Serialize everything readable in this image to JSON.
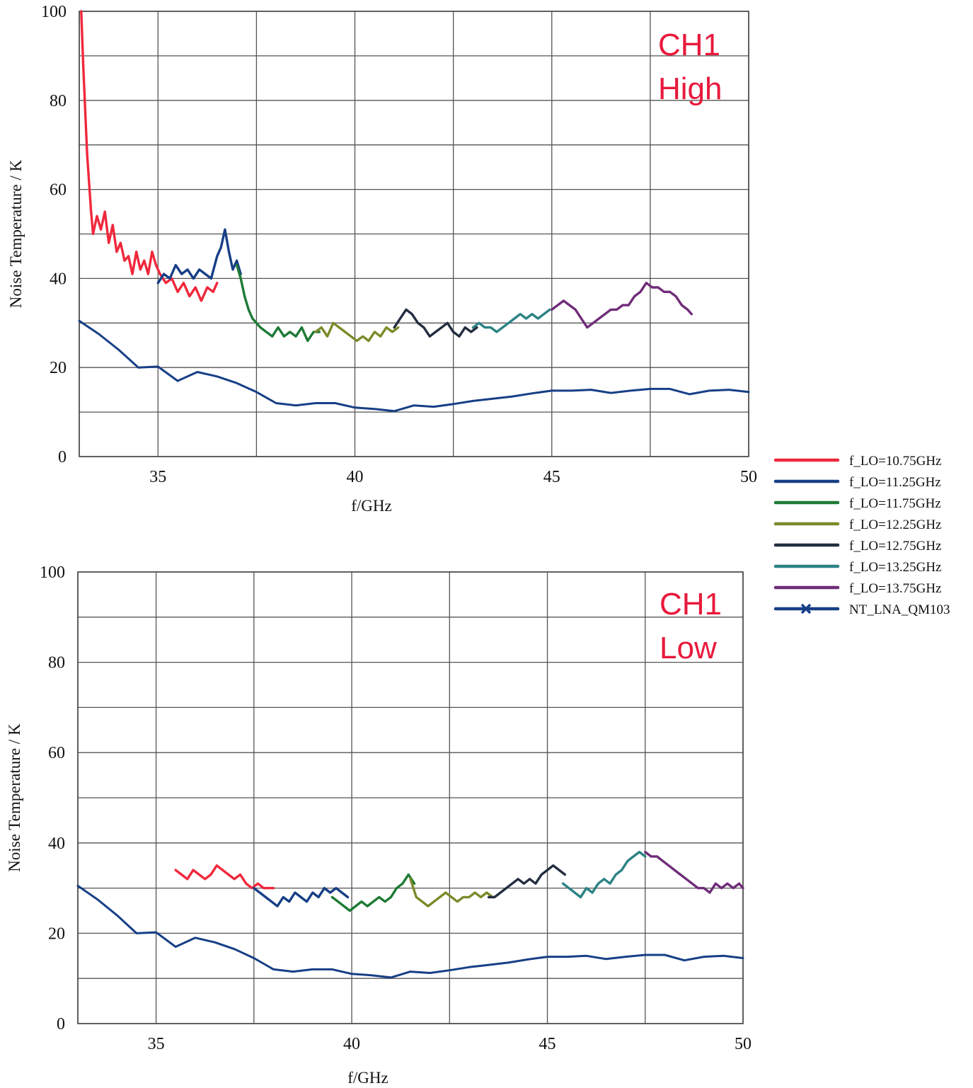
{
  "chart_data": [
    {
      "type": "line",
      "annotation_lines": [
        "CH1",
        "High"
      ],
      "xlabel": "f/GHz",
      "ylabel": "Noise Temperature / K",
      "xlim": [
        33,
        50
      ],
      "ylim": [
        0,
        100
      ],
      "xticks": [
        35,
        40,
        45,
        50
      ],
      "yticks": [
        0,
        20,
        40,
        60,
        80,
        100
      ],
      "grid": true,
      "series": [
        {
          "name": "f_LO=10.75GHz",
          "color": "#f0283c",
          "x": [
            33.05,
            33.1,
            33.2,
            33.3,
            33.35,
            33.45,
            33.55,
            33.65,
            33.75,
            33.85,
            33.95,
            34.05,
            34.15,
            34.25,
            34.35,
            34.45,
            34.55,
            34.65,
            34.75,
            34.85,
            34.95,
            35.05,
            35.2,
            35.35,
            35.5,
            35.65,
            35.8,
            35.95,
            36.1,
            36.25,
            36.4,
            36.5
          ],
          "y": [
            100,
            88,
            68,
            55,
            50,
            54,
            51,
            55,
            48,
            52,
            46,
            48,
            44,
            45,
            41,
            46,
            42,
            44,
            41,
            46,
            43,
            41,
            39,
            40,
            37,
            39,
            36,
            38,
            35,
            38,
            37,
            39
          ]
        },
        {
          "name": "f_LO=11.25GHz",
          "color": "#173f86",
          "x": [
            35.0,
            35.15,
            35.3,
            35.45,
            35.6,
            35.75,
            35.9,
            36.05,
            36.2,
            36.35,
            36.5,
            36.6,
            36.7,
            36.8,
            36.9,
            37.0,
            37.1
          ],
          "y": [
            39,
            41,
            40,
            43,
            41,
            42,
            40,
            42,
            41,
            40,
            45,
            47,
            51,
            46,
            42,
            44,
            41
          ]
        },
        {
          "name": "f_LO=11.75GHz",
          "color": "#1d7a35",
          "x": [
            37.0,
            37.1,
            37.2,
            37.3,
            37.4,
            37.5,
            37.6,
            37.75,
            37.9,
            38.05,
            38.2,
            38.35,
            38.5,
            38.65,
            38.8,
            38.95,
            39.1
          ],
          "y": [
            43,
            40,
            36,
            33,
            31,
            30,
            29,
            28,
            27,
            29,
            27,
            28,
            27,
            29,
            26,
            28,
            28
          ]
        },
        {
          "name": "f_LO=12.25GHz",
          "color": "#7d8a2a",
          "x": [
            39.0,
            39.15,
            39.3,
            39.45,
            39.6,
            39.75,
            39.9,
            40.05,
            40.2,
            40.35,
            40.5,
            40.65,
            40.8,
            40.95,
            41.1
          ],
          "y": [
            28,
            29,
            27,
            30,
            29,
            28,
            27,
            26,
            27,
            26,
            28,
            27,
            29,
            28,
            29
          ]
        },
        {
          "name": "f_LO=12.75GHz",
          "color": "#232d3f",
          "x": [
            41.0,
            41.15,
            41.3,
            41.45,
            41.6,
            41.75,
            41.9,
            42.05,
            42.2,
            42.35,
            42.5,
            42.65,
            42.8,
            42.95,
            43.1
          ],
          "y": [
            29,
            31,
            33,
            32,
            30,
            29,
            27,
            28,
            29,
            30,
            28,
            27,
            29,
            28,
            29
          ]
        },
        {
          "name": "f_LO=13.25GHz",
          "color": "#2c8284",
          "x": [
            43.0,
            43.15,
            43.3,
            43.45,
            43.6,
            43.75,
            43.9,
            44.05,
            44.2,
            44.35,
            44.5,
            44.65,
            44.8,
            44.95
          ],
          "y": [
            29,
            30,
            29,
            29,
            28,
            29,
            30,
            31,
            32,
            31,
            32,
            31,
            32,
            33
          ]
        },
        {
          "name": "f_LO=13.75GHz",
          "color": "#6f2c78",
          "x": [
            45.0,
            45.15,
            45.3,
            45.45,
            45.6,
            45.75,
            45.9,
            46.05,
            46.2,
            46.35,
            46.5,
            46.65,
            46.8,
            46.95,
            47.1,
            47.25,
            47.4,
            47.55,
            47.7,
            47.85,
            48.0,
            48.15,
            48.3,
            48.45,
            48.55
          ],
          "y": [
            33,
            34,
            35,
            34,
            33,
            31,
            29,
            30,
            31,
            32,
            33,
            33,
            34,
            34,
            36,
            37,
            39,
            38,
            38,
            37,
            37,
            36,
            34,
            33,
            32
          ]
        },
        {
          "name": "NT_LNA_QM103",
          "color": "#173f86",
          "x": [
            33.0,
            33.5,
            34.0,
            34.5,
            35.0,
            35.5,
            36.0,
            36.5,
            37.0,
            37.5,
            38.0,
            38.5,
            39.0,
            39.5,
            40.0,
            40.5,
            41.0,
            41.5,
            42.0,
            42.5,
            43.0,
            43.5,
            44.0,
            44.5,
            45.0,
            45.5,
            46.0,
            46.5,
            47.0,
            47.5,
            48.0,
            48.5,
            49.0,
            49.5,
            50.0
          ],
          "y": [
            30.5,
            27.5,
            24,
            20,
            20.2,
            17,
            19,
            18,
            16.5,
            14.5,
            12,
            11.5,
            12,
            12,
            11,
            10.7,
            10.2,
            11.5,
            11.2,
            11.8,
            12.5,
            13,
            13.5,
            14.2,
            14.8,
            14.8,
            15,
            14.3,
            14.8,
            15.2,
            15.2,
            14,
            14.8,
            15,
            14.5
          ]
        }
      ]
    },
    {
      "type": "line",
      "annotation_lines": [
        "CH1",
        "Low"
      ],
      "xlabel": "f/GHz",
      "ylabel": "Noise Temperature / K",
      "xlim": [
        33,
        50
      ],
      "ylim": [
        0,
        100
      ],
      "xticks": [
        35,
        40,
        45,
        50
      ],
      "yticks": [
        0,
        20,
        40,
        60,
        80,
        100
      ],
      "grid": true,
      "series": [
        {
          "name": "f_LO=10.75GHz",
          "color": "#f0283c",
          "x": [
            35.5,
            35.65,
            35.8,
            35.95,
            36.1,
            36.25,
            36.4,
            36.55,
            36.7,
            36.85,
            37.0,
            37.15,
            37.3,
            37.45,
            37.6,
            37.75,
            37.9,
            38.0
          ],
          "y": [
            34,
            33,
            32,
            34,
            33,
            32,
            33,
            35,
            34,
            33,
            32,
            33,
            31,
            30,
            31,
            30,
            30,
            30
          ]
        },
        {
          "name": "f_LO=11.25GHz",
          "color": "#173f86",
          "x": [
            37.5,
            37.65,
            37.8,
            37.95,
            38.1,
            38.25,
            38.4,
            38.55,
            38.7,
            38.85,
            39.0,
            39.15,
            39.3,
            39.45,
            39.6,
            39.75,
            39.9
          ],
          "y": [
            30,
            29,
            28,
            27,
            26,
            28,
            27,
            29,
            28,
            27,
            29,
            28,
            30,
            29,
            30,
            29,
            28
          ]
        },
        {
          "name": "f_LO=11.75GHz",
          "color": "#1d7a35",
          "x": [
            39.5,
            39.65,
            39.8,
            39.95,
            40.1,
            40.25,
            40.4,
            40.55,
            40.7,
            40.85,
            41.0,
            41.15,
            41.3,
            41.45,
            41.6
          ],
          "y": [
            28,
            27,
            26,
            25,
            26,
            27,
            26,
            27,
            28,
            27,
            28,
            30,
            31,
            33,
            31
          ]
        },
        {
          "name": "f_LO=12.25GHz",
          "color": "#7d8a2a",
          "x": [
            41.5,
            41.65,
            41.8,
            41.95,
            42.1,
            42.25,
            42.4,
            42.55,
            42.7,
            42.85,
            43.0,
            43.15,
            43.3,
            43.45,
            43.6
          ],
          "y": [
            32,
            28,
            27,
            26,
            27,
            28,
            29,
            28,
            27,
            28,
            28,
            29,
            28,
            29,
            28
          ]
        },
        {
          "name": "f_LO=12.75GHz",
          "color": "#232d3f",
          "x": [
            43.5,
            43.65,
            43.8,
            43.95,
            44.1,
            44.25,
            44.4,
            44.55,
            44.7,
            44.85,
            45.0,
            45.15,
            45.3,
            45.45
          ],
          "y": [
            28,
            28,
            29,
            30,
            31,
            32,
            31,
            32,
            31,
            33,
            34,
            35,
            34,
            33
          ]
        },
        {
          "name": "f_LO=13.25GHz",
          "color": "#2c8284",
          "x": [
            45.4,
            45.55,
            45.7,
            45.85,
            46.0,
            46.15,
            46.3,
            46.45,
            46.6,
            46.75,
            46.9,
            47.05,
            47.2,
            47.35,
            47.5
          ],
          "y": [
            31,
            30,
            29,
            28,
            30,
            29,
            31,
            32,
            31,
            33,
            34,
            36,
            37,
            38,
            37
          ]
        },
        {
          "name": "f_LO=13.75GHz",
          "color": "#6f2c78",
          "x": [
            47.5,
            47.65,
            47.8,
            47.95,
            48.1,
            48.25,
            48.4,
            48.55,
            48.7,
            48.85,
            49.0,
            49.15,
            49.3,
            49.45,
            49.6,
            49.75,
            49.9,
            50.0
          ],
          "y": [
            38,
            37,
            37,
            36,
            35,
            34,
            33,
            32,
            31,
            30,
            30,
            29,
            31,
            30,
            31,
            30,
            31,
            30
          ]
        },
        {
          "name": "NT_LNA_QM103",
          "color": "#173f86",
          "x": [
            33.0,
            33.5,
            34.0,
            34.5,
            35.0,
            35.5,
            36.0,
            36.5,
            37.0,
            37.5,
            38.0,
            38.5,
            39.0,
            39.5,
            40.0,
            40.5,
            41.0,
            41.5,
            42.0,
            42.5,
            43.0,
            43.5,
            44.0,
            44.5,
            45.0,
            45.5,
            46.0,
            46.5,
            47.0,
            47.5,
            48.0,
            48.5,
            49.0,
            49.5,
            50.0
          ],
          "y": [
            30.5,
            27.5,
            24,
            20,
            20.2,
            17,
            19,
            18,
            16.5,
            14.5,
            12,
            11.5,
            12,
            12,
            11,
            10.7,
            10.2,
            11.5,
            11.2,
            11.8,
            12.5,
            13,
            13.5,
            14.2,
            14.8,
            14.8,
            15,
            14.3,
            14.8,
            15.2,
            15.2,
            14,
            14.8,
            15,
            14.5
          ]
        }
      ]
    }
  ],
  "legend": {
    "placement": "right",
    "entries": [
      {
        "label": "f_LO=10.75GHz",
        "color": "#f0283c",
        "marker": ""
      },
      {
        "label": "f_LO=11.25GHz",
        "color": "#173f86",
        "marker": ""
      },
      {
        "label": "f_LO=11.75GHz",
        "color": "#1d7a35",
        "marker": ""
      },
      {
        "label": "f_LO=12.25GHz",
        "color": "#7d8a2a",
        "marker": ""
      },
      {
        "label": "f_LO=12.75GHz",
        "color": "#232d3f",
        "marker": ""
      },
      {
        "label": "f_LO=13.25GHz",
        "color": "#2c8284",
        "marker": ""
      },
      {
        "label": "f_LO=13.75GHz",
        "color": "#6f2c78",
        "marker": ""
      },
      {
        "label": "NT_LNA_QM103",
        "color": "#173f86",
        "marker": "x"
      }
    ]
  }
}
